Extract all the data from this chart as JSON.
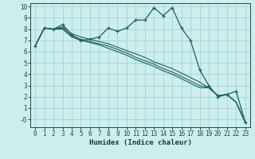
{
  "xlabel": "Humidex (Indice chaleur)",
  "background_color": "#ceeeed",
  "grid_color": "#9ed4d3",
  "line_color": "#1a6060",
  "xlim": [
    -0.5,
    23.5
  ],
  "ylim": [
    -0.7,
    10.3
  ],
  "xticks": [
    0,
    1,
    2,
    3,
    4,
    5,
    6,
    7,
    8,
    9,
    10,
    11,
    12,
    13,
    14,
    15,
    16,
    17,
    18,
    19,
    20,
    21,
    22,
    23
  ],
  "yticks": [
    0,
    1,
    2,
    3,
    4,
    5,
    6,
    7,
    8,
    9,
    10
  ],
  "ytick_labels": [
    "-0",
    "1",
    "2",
    "3",
    "4",
    "5",
    "6",
    "7",
    "8",
    "9",
    "10"
  ],
  "series": [
    {
      "x": [
        0,
        1,
        2,
        3,
        4,
        5,
        6,
        7,
        8,
        9,
        10,
        11,
        12,
        13,
        14,
        15,
        16,
        17,
        18,
        19,
        20,
        21,
        22,
        23
      ],
      "y": [
        6.5,
        8.1,
        8.0,
        8.4,
        7.5,
        7.0,
        7.1,
        7.3,
        8.1,
        7.8,
        8.1,
        8.8,
        8.8,
        9.9,
        9.2,
        9.9,
        8.1,
        7.0,
        4.4,
        3.0,
        2.0,
        2.2,
        2.5,
        -0.3
      ],
      "marker": true
    },
    {
      "x": [
        0,
        1,
        2,
        3,
        4,
        5,
        6,
        7,
        8,
        9,
        10,
        11,
        12,
        13,
        14,
        15,
        16,
        17,
        18,
        19,
        20,
        21,
        22,
        23
      ],
      "y": [
        6.5,
        8.1,
        8.0,
        8.2,
        7.6,
        7.3,
        7.1,
        6.9,
        6.7,
        6.4,
        6.1,
        5.8,
        5.5,
        5.1,
        4.8,
        4.5,
        4.1,
        3.7,
        3.3,
        2.8,
        2.1,
        2.2,
        1.5,
        -0.3
      ],
      "marker": false
    },
    {
      "x": [
        0,
        1,
        2,
        3,
        4,
        5,
        6,
        7,
        8,
        9,
        10,
        11,
        12,
        13,
        14,
        15,
        16,
        17,
        18,
        19,
        20,
        21,
        22,
        23
      ],
      "y": [
        6.5,
        8.1,
        8.0,
        8.1,
        7.4,
        7.1,
        6.9,
        6.7,
        6.5,
        6.2,
        5.9,
        5.5,
        5.2,
        4.9,
        4.5,
        4.2,
        3.8,
        3.4,
        3.0,
        2.8,
        2.1,
        2.2,
        1.5,
        -0.3
      ],
      "marker": false
    },
    {
      "x": [
        0,
        1,
        2,
        3,
        4,
        5,
        6,
        7,
        8,
        9,
        10,
        11,
        12,
        13,
        14,
        15,
        16,
        17,
        18,
        19,
        20,
        21,
        22,
        23
      ],
      "y": [
        6.5,
        8.1,
        8.0,
        8.0,
        7.3,
        7.0,
        6.8,
        6.6,
        6.3,
        6.0,
        5.7,
        5.3,
        5.0,
        4.7,
        4.3,
        4.0,
        3.6,
        3.2,
        2.8,
        2.8,
        2.1,
        2.2,
        1.5,
        -0.3
      ],
      "marker": false
    }
  ]
}
